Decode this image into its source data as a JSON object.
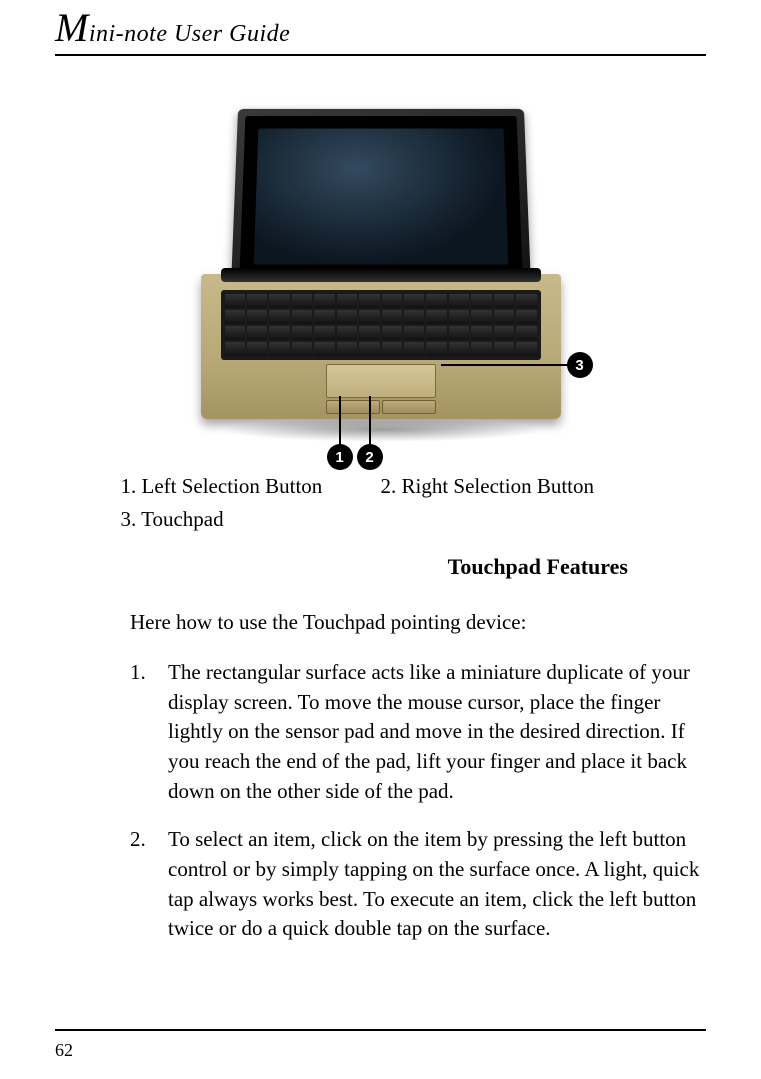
{
  "header": {
    "initial": "M",
    "rest": "ini-note User Guide"
  },
  "figure": {
    "callouts": {
      "c1": "1",
      "c2": "2",
      "c3": "3"
    }
  },
  "legend": {
    "item1": "1. Left Selection Button",
    "item2": "2. Right Selection Button",
    "item3": "3. Touchpad"
  },
  "section_title": "Touchpad Features",
  "intro": "Here how to use the Touchpad pointing device:",
  "steps": [
    {
      "num": "1.",
      "text": "The rectangular surface acts like a miniature duplicate of your display screen. To move the mouse cursor, place the finger lightly on the sensor pad and move in the desired direction. If you reach the end of the pad, lift your finger and place it back down on the other side of the pad."
    },
    {
      "num": "2.",
      "text": "To select an item, click on the item by pressing the left button control or by simply tapping on the surface once. A light, quick tap always works best. To execute an item, click the left button twice or do a quick double tap on the surface."
    }
  ],
  "page_number": "62"
}
